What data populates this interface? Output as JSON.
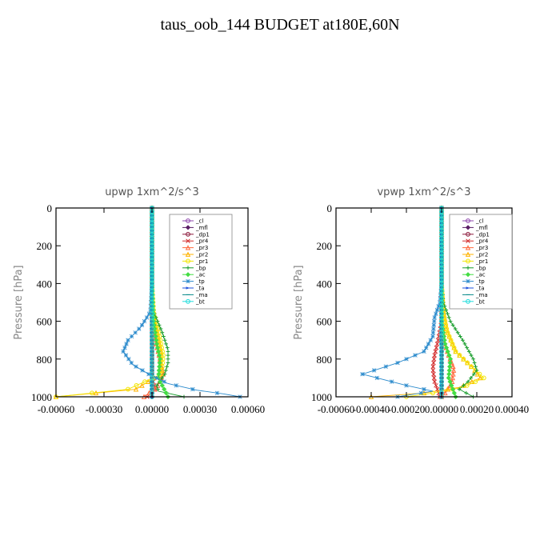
{
  "title": "taus_oob_144  BUDGET at180E,60N",
  "colors": {
    "_cl": "#8e44ad",
    "_mfl": "#5b1f66",
    "_dp1": "#8b1a3c",
    "_pr4": "#d22b2b",
    "_pr3": "#ff6a3d",
    "_pr2": "#ffb300",
    "_pr1": "#f2e600",
    "_bp": "#1a9e2e",
    "_ac": "#44dd44",
    "_tp": "#2a8acc",
    "_ta": "#2255dd",
    "_ma": "#0a8a8a",
    "_bt": "#22dddd"
  },
  "chart_data": [
    {
      "type": "line",
      "title": "upwp   1xm^2/s^3",
      "ylabel": "Pressure [hPa]",
      "xlim": [
        -0.0006,
        0.0006
      ],
      "ylim": [
        1000,
        0
      ],
      "xticks": [
        -0.0006,
        -0.0003,
        0.0,
        0.0003,
        0.0006
      ],
      "xtick_labels": [
        "-0.00060",
        "-0.00030",
        "0.00000",
        "0.00030",
        "0.00060"
      ],
      "yticks": [
        0,
        200,
        400,
        600,
        800,
        1000
      ],
      "ytick_labels": [
        "0",
        "200",
        "400",
        "600",
        "800",
        "1000"
      ],
      "legend_position": "top-right",
      "series": [
        {
          "name": "_cl",
          "x": [
            0,
            0,
            0,
            0,
            0,
            0,
            0,
            0,
            0,
            0,
            0
          ],
          "y": [
            0,
            100,
            200,
            300,
            400,
            500,
            600,
            700,
            800,
            900,
            1000
          ]
        },
        {
          "name": "_mfl",
          "x": [
            0,
            0,
            0,
            0,
            0,
            0,
            0,
            0,
            0,
            0,
            0
          ],
          "y": [
            0,
            100,
            200,
            300,
            400,
            500,
            600,
            700,
            800,
            900,
            1000
          ]
        },
        {
          "name": "_dp1",
          "x": [
            0,
            0,
            0,
            0,
            0,
            0,
            0,
            0,
            0,
            0,
            0
          ],
          "y": [
            0,
            100,
            200,
            300,
            400,
            500,
            600,
            700,
            800,
            900,
            1000
          ]
        },
        {
          "name": "_pr4",
          "x": [
            0,
            0,
            0,
            0,
            0,
            0,
            0,
            2e-05,
            -3e-05
          ],
          "y": [
            0,
            200,
            400,
            600,
            700,
            800,
            900,
            960,
            1000
          ]
        },
        {
          "name": "_pr3",
          "x": [
            0,
            0,
            0,
            0,
            2e-05,
            5e-05,
            7e-05,
            3e-05,
            -5e-05
          ],
          "y": [
            0,
            200,
            400,
            600,
            700,
            800,
            880,
            950,
            1000
          ]
        },
        {
          "name": "_pr2",
          "x": [
            0,
            0,
            0,
            0,
            3e-05,
            6e-05,
            5e-05,
            -0.0001,
            -0.0006
          ],
          "y": [
            0,
            200,
            400,
            550,
            650,
            780,
            880,
            960,
            1000
          ]
        },
        {
          "name": "_pr1",
          "x": [
            0,
            0,
            0,
            1e-05,
            4e-05,
            7e-05,
            6e-05,
            -0.00015,
            -0.0006
          ],
          "y": [
            0,
            200,
            400,
            550,
            650,
            780,
            880,
            960,
            1000
          ]
        },
        {
          "name": "_bp",
          "x": [
            0,
            0,
            0,
            1e-05,
            6e-05,
            0.0001,
            0.0001,
            8e-05,
            3e-05,
            4e-05,
            0.0002
          ],
          "y": [
            0,
            200,
            400,
            550,
            650,
            750,
            820,
            880,
            940,
            970,
            1000
          ]
        },
        {
          "name": "_ac",
          "x": [
            0,
            0,
            0,
            1e-05,
            3e-05,
            5e-05,
            4e-05,
            0.0001
          ],
          "y": [
            0,
            200,
            400,
            600,
            720,
            800,
            900,
            1000
          ]
        },
        {
          "name": "_tp",
          "x": [
            0,
            0,
            0,
            -1e-05,
            -7e-05,
            -0.00015,
            -0.00018,
            -0.00012,
            -2e-05,
            0.0001,
            0.00028,
            0.00045,
            0.00055
          ],
          "y": [
            0,
            200,
            400,
            550,
            630,
            700,
            760,
            830,
            880,
            930,
            965,
            985,
            1000
          ]
        },
        {
          "name": "_ta",
          "x": [
            0,
            0,
            0,
            0,
            0,
            0,
            0
          ],
          "y": [
            0,
            200,
            400,
            600,
            800,
            900,
            1000
          ]
        },
        {
          "name": "_ma",
          "x": [
            0,
            0,
            0,
            0,
            0,
            0,
            0
          ],
          "y": [
            0,
            200,
            400,
            600,
            800,
            900,
            1000
          ]
        },
        {
          "name": "_bt",
          "x": [
            0,
            0,
            0,
            0,
            0,
            0,
            0
          ],
          "y": [
            0,
            200,
            400,
            600,
            800,
            900,
            1000
          ]
        }
      ]
    },
    {
      "type": "line",
      "title": "vpwp   1xm^2/s^3",
      "ylabel": "Pressure [hPa]",
      "xlim": [
        -0.0006,
        0.0004
      ],
      "ylim": [
        1000,
        0
      ],
      "xticks": [
        -0.0006,
        -0.0004,
        -0.0002,
        0.0,
        0.0002,
        0.0004
      ],
      "xtick_labels": [
        "-0.00060",
        "-0.00040",
        "-0.00020",
        "0.00000",
        "0.00020",
        "0.00040"
      ],
      "yticks": [
        0,
        200,
        400,
        600,
        800,
        1000
      ],
      "ytick_labels": [
        "0",
        "200",
        "400",
        "600",
        "800",
        "1000"
      ],
      "legend_position": "top-right",
      "series": [
        {
          "name": "_cl",
          "x": [
            0,
            0,
            0,
            0,
            0,
            0,
            0,
            0,
            0,
            0,
            0
          ],
          "y": [
            0,
            100,
            200,
            300,
            400,
            500,
            600,
            700,
            800,
            900,
            1000
          ]
        },
        {
          "name": "_mfl",
          "x": [
            0,
            0,
            0,
            0,
            0,
            0,
            0,
            0,
            0,
            0,
            0
          ],
          "y": [
            0,
            100,
            200,
            300,
            400,
            500,
            600,
            700,
            800,
            900,
            1000
          ]
        },
        {
          "name": "_dp1",
          "x": [
            0,
            0,
            0,
            0,
            0,
            0,
            0,
            0,
            0,
            0,
            0
          ],
          "y": [
            0,
            100,
            200,
            300,
            400,
            500,
            600,
            700,
            800,
            900,
            1000
          ]
        },
        {
          "name": "_pr4",
          "x": [
            0,
            0,
            0,
            0,
            -2e-05,
            -4e-05,
            -5e-05,
            -4e-05,
            -2e-05,
            -1e-05
          ],
          "y": [
            0,
            200,
            400,
            600,
            700,
            780,
            850,
            920,
            970,
            1000
          ]
        },
        {
          "name": "_pr3",
          "x": [
            0,
            0,
            0,
            0,
            1e-05,
            4e-05,
            7e-05,
            6e-05,
            3e-05,
            0
          ],
          "y": [
            0,
            200,
            400,
            600,
            700,
            780,
            850,
            920,
            970,
            1000
          ]
        },
        {
          "name": "_pr2",
          "x": [
            0,
            0,
            0,
            1e-05,
            3e-05,
            8e-05,
            0.00018,
            0.00022,
            0.0001,
            -0.0001,
            -0.0004
          ],
          "y": [
            0,
            200,
            400,
            550,
            650,
            760,
            850,
            900,
            950,
            980,
            1000
          ]
        },
        {
          "name": "_pr1",
          "x": [
            0,
            0,
            0,
            1e-05,
            3e-05,
            8e-05,
            0.00018,
            0.00024,
            0.00012,
            -5e-05,
            -0.0002
          ],
          "y": [
            0,
            200,
            400,
            550,
            650,
            760,
            850,
            900,
            950,
            980,
            1000
          ]
        },
        {
          "name": "_bp",
          "x": [
            0,
            0,
            0,
            1e-05,
            5e-05,
            0.00012,
            0.00018,
            0.0002,
            0.00015,
            0.0001,
            0.00018
          ],
          "y": [
            0,
            200,
            400,
            500,
            600,
            700,
            800,
            860,
            920,
            960,
            1000
          ]
        },
        {
          "name": "_ac",
          "x": [
            0,
            0,
            0,
            0,
            2e-05,
            5e-05,
            4e-05,
            8e-05
          ],
          "y": [
            0,
            200,
            400,
            600,
            720,
            800,
            900,
            1000
          ]
        },
        {
          "name": "_tp",
          "x": [
            0,
            0,
            0,
            -1e-05,
            -4e-05,
            -5e-05,
            -0.0001,
            -0.00025,
            -0.00045,
            -0.0002,
            -5e-05,
            -0.00025
          ],
          "y": [
            0,
            200,
            400,
            500,
            580,
            680,
            760,
            820,
            880,
            940,
            970,
            1000
          ]
        },
        {
          "name": "_ta",
          "x": [
            0,
            0,
            0,
            0,
            0,
            0,
            0
          ],
          "y": [
            0,
            200,
            400,
            600,
            800,
            900,
            1000
          ]
        },
        {
          "name": "_ma",
          "x": [
            0,
            0,
            0,
            0,
            0,
            0,
            0
          ],
          "y": [
            0,
            200,
            400,
            600,
            800,
            900,
            1000
          ]
        },
        {
          "name": "_bt",
          "x": [
            0,
            0,
            0,
            0,
            0,
            0,
            0
          ],
          "y": [
            0,
            200,
            400,
            600,
            800,
            900,
            1000
          ]
        }
      ]
    }
  ]
}
